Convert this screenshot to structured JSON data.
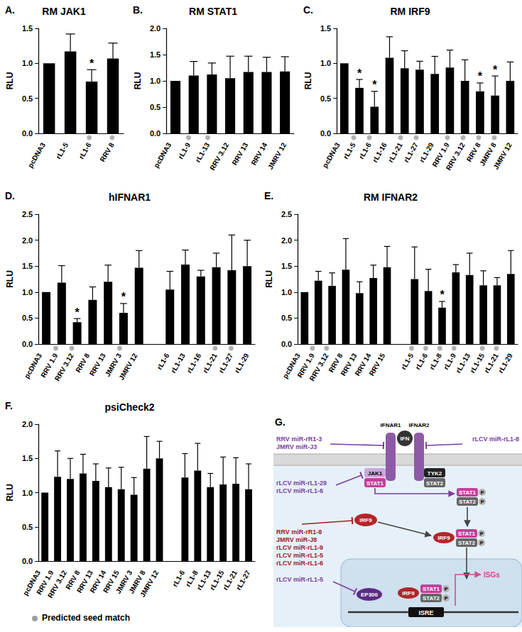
{
  "chart_data": [
    {
      "type": "bar",
      "label": "A.",
      "title": "RM JAK1",
      "y_label": "RLU",
      "color": "#000000",
      "grid": false,
      "categories": [
        "pcDNA3",
        "rL1-5",
        "rL1-6",
        "RRV 8"
      ],
      "values": [
        1,
        1.17,
        0.74,
        1.07
      ],
      "errors": [
        null,
        0.25,
        0.17,
        0.22
      ],
      "significant": [
        false,
        false,
        true,
        false
      ],
      "significance_mark": "*",
      "seed_match": [
        false,
        false,
        true,
        true
      ],
      "ylim": [
        0,
        1.5
      ],
      "yticks": [
        {
          "value": 0,
          "label": "0.0"
        },
        0.5,
        {
          "value": 1,
          "label": "1.0"
        },
        1.5
      ]
    },
    {
      "type": "bar",
      "label": "B.",
      "title": "RM STAT1",
      "y_label": "RLU",
      "color": "#000000",
      "grid": false,
      "categories": [
        "pcDNA3",
        "rL1-9",
        "rL1-13",
        "RRV 3.12",
        "RRV 13",
        "RRV 14",
        "JMRV 12"
      ],
      "values": [
        1,
        1.1,
        1.12,
        1.05,
        1.17,
        1.17,
        1.18
      ],
      "errors": [
        null,
        0.27,
        0.22,
        0.42,
        0.3,
        0.28,
        0.28
      ],
      "significant": [
        false,
        false,
        false,
        false,
        false,
        false,
        false
      ],
      "significance_mark": "*",
      "seed_match": [
        false,
        true,
        true,
        false,
        false,
        false,
        false
      ],
      "ylim": [
        0,
        2
      ],
      "yticks": [
        {
          "value": 0,
          "label": "0.0"
        },
        0.5,
        {
          "value": 1,
          "label": "1.0"
        },
        1.5,
        {
          "value": 2,
          "label": "2.0"
        }
      ]
    },
    {
      "type": "bar",
      "label": "C.",
      "title": "RM IRF9",
      "y_label": "RLU",
      "color": "#000000",
      "grid": false,
      "categories": [
        "pcDNA3",
        "rL1-5",
        "rL1-6",
        "rL1-16",
        "rL1-21",
        "rL1-27",
        "rL1-29",
        "RRV 1.9",
        "RRV 3.12",
        "RRV 8",
        "JMRV 8",
        "JMRV 12"
      ],
      "values": [
        1,
        0.65,
        0.38,
        1.08,
        0.93,
        0.91,
        0.85,
        0.94,
        0.75,
        0.6,
        0.54,
        0.75
      ],
      "errors": [
        null,
        0.12,
        0.22,
        0.3,
        0.25,
        0.12,
        0.25,
        0.25,
        0.3,
        0.12,
        0.28,
        0.27
      ],
      "significant": [
        false,
        true,
        true,
        false,
        false,
        false,
        false,
        false,
        false,
        true,
        true,
        false
      ],
      "significance_mark": "*",
      "seed_match": [
        false,
        true,
        true,
        false,
        true,
        true,
        false,
        true,
        true,
        true,
        true,
        false
      ],
      "ylim": [
        0,
        1.5
      ],
      "yticks": [
        {
          "value": 0,
          "label": "0.0"
        },
        0.5,
        {
          "value": 1,
          "label": "1.0"
        },
        1.5
      ]
    },
    {
      "type": "bar",
      "label": "D.",
      "title": "hIFNAR1",
      "y_label": "RLU",
      "color": "#000000",
      "grid": false,
      "categories": [
        "pcDNA3",
        "RRV 1.9",
        "RRV 3.12",
        "RRV 8",
        "RRV 13",
        "JMRV 3",
        "JMRV 12",
        null,
        "rL1-6",
        "rL1-13",
        "rL1-16",
        "rL1-21",
        "rL1-27",
        "rL1-29"
      ],
      "values": [
        1,
        1.18,
        0.42,
        0.85,
        1.2,
        0.6,
        1.47,
        null,
        1.05,
        1.53,
        1.3,
        1.48,
        1.42,
        1.5
      ],
      "errors": [
        null,
        0.33,
        0.07,
        0.25,
        0.32,
        0.18,
        0.33,
        null,
        0.35,
        0.28,
        0.12,
        0.27,
        0.68,
        0.5
      ],
      "significant": [
        false,
        false,
        true,
        false,
        false,
        true,
        false,
        false,
        false,
        false,
        false,
        false,
        false,
        false
      ],
      "significance_mark": "*",
      "seed_match": [
        false,
        true,
        true,
        false,
        false,
        true,
        false,
        false,
        false,
        false,
        false,
        true,
        true,
        false
      ],
      "ylim": [
        0,
        2.5
      ],
      "yticks": [
        {
          "value": 0,
          "label": "0.0"
        },
        0.5,
        {
          "value": 1,
          "label": "1.0"
        },
        1.5,
        {
          "value": 2,
          "label": "2.0"
        },
        2.5
      ]
    },
    {
      "type": "bar",
      "label": "E.",
      "title": "RM IFNAR2",
      "y_label": "RLU",
      "color": "#000000",
      "grid": false,
      "categories": [
        "pcDNA3",
        "RRV 1.9",
        "RRV 3.12",
        "RRV 8",
        "RRV 13",
        "RRV 14",
        "RRV 15",
        null,
        "rL1-5",
        "rL1-6",
        "rL1-8",
        "rL1-9",
        "rL1-13",
        "rL1-15",
        "rL1-21",
        "rL1-29"
      ],
      "values": [
        1,
        1.22,
        1.12,
        1.43,
        0.98,
        1.27,
        1.48,
        null,
        1.25,
        1.02,
        0.7,
        1.38,
        1.33,
        1.13,
        1.13,
        1.35
      ],
      "errors": [
        null,
        0.18,
        0.25,
        0.6,
        0.22,
        0.25,
        0.4,
        null,
        0.62,
        0.42,
        0.12,
        0.15,
        0.42,
        0.28,
        0.15,
        0.45
      ],
      "significant": [
        false,
        false,
        false,
        false,
        false,
        false,
        false,
        false,
        false,
        false,
        true,
        false,
        false,
        false,
        false,
        false
      ],
      "significance_mark": "*",
      "seed_match": [
        false,
        true,
        true,
        false,
        false,
        false,
        false,
        false,
        true,
        true,
        true,
        true,
        false,
        true,
        true,
        false
      ],
      "ylim": [
        0,
        2.5
      ],
      "yticks": [
        {
          "value": 0,
          "label": "0.0"
        },
        0.5,
        {
          "value": 1,
          "label": "1.0"
        },
        1.5,
        {
          "value": 2,
          "label": "2.0"
        },
        2.5
      ]
    },
    {
      "type": "bar",
      "label": "F.",
      "title": "psiCheck2",
      "y_label": "RLU",
      "color": "#000000",
      "grid": false,
      "categories": [
        "pcDNA3",
        "RRV 1.9",
        "RRV 3.12",
        "RRV 8",
        "RRV 13",
        "RRV 14",
        "RRV 15",
        "JMRV 3",
        "JMRV 8",
        "JMRV 12",
        null,
        "rL1-6",
        "rL1-8",
        "rL1-13",
        "rL1-15",
        "rL1-21",
        "rL1-27"
      ],
      "values": [
        1,
        1.23,
        1.2,
        1.28,
        1.17,
        1.08,
        1.05,
        0.97,
        1.35,
        1.5,
        null,
        1.22,
        1.32,
        1.08,
        1.12,
        1.13,
        1.05
      ],
      "errors": [
        null,
        0.38,
        0.3,
        0.28,
        0.25,
        0.28,
        0.32,
        0.25,
        0.47,
        0.25,
        null,
        0.35,
        0.4,
        0.2,
        0.4,
        0.38,
        0.37
      ],
      "significant": [
        false,
        false,
        false,
        false,
        false,
        false,
        false,
        false,
        false,
        false,
        false,
        false,
        false,
        false,
        false,
        false,
        false
      ],
      "significance_mark": "*",
      "seed_match": [
        false,
        false,
        false,
        false,
        false,
        false,
        false,
        false,
        false,
        false,
        false,
        false,
        false,
        false,
        false,
        false,
        false
      ],
      "ylim": [
        0,
        2
      ],
      "yticks": [
        {
          "value": 0,
          "label": "0.0"
        },
        0.5,
        {
          "value": 1,
          "label": "1.0"
        },
        1.5,
        {
          "value": 2,
          "label": "2.0"
        }
      ]
    }
  ],
  "seed_match_legend": "Predicted seed match",
  "diagram": {
    "label": "G.",
    "ligand": "IFN",
    "receptors": [
      "IFNAR1",
      "IFNAR2"
    ],
    "kinases": [
      "JAK1",
      "TYK2"
    ],
    "stats": [
      "STAT1",
      "STAT2"
    ],
    "phospho": "P",
    "irf": "IRF9",
    "coactivator": "EP300",
    "element": "ISRE",
    "output": "ISGs",
    "mirnas": {
      "ifnar1": [
        "RRV miR-rR1-3",
        "JMRV miR-J3"
      ],
      "ifnar2": [
        "rLCV miR-rL1-8"
      ],
      "jak1": [
        "rLCV miR-rL1-29",
        "rLCV miR-rL1-6"
      ],
      "irf9": [
        "RRV miR-rR1-8",
        "JMRV miR-J8",
        "rLCV miR-rL1-9",
        "rLCV miR-rL1-5",
        "rLCV miR-rL1-6"
      ],
      "ep300": [
        "rLCV miR-rL1-5"
      ]
    }
  }
}
